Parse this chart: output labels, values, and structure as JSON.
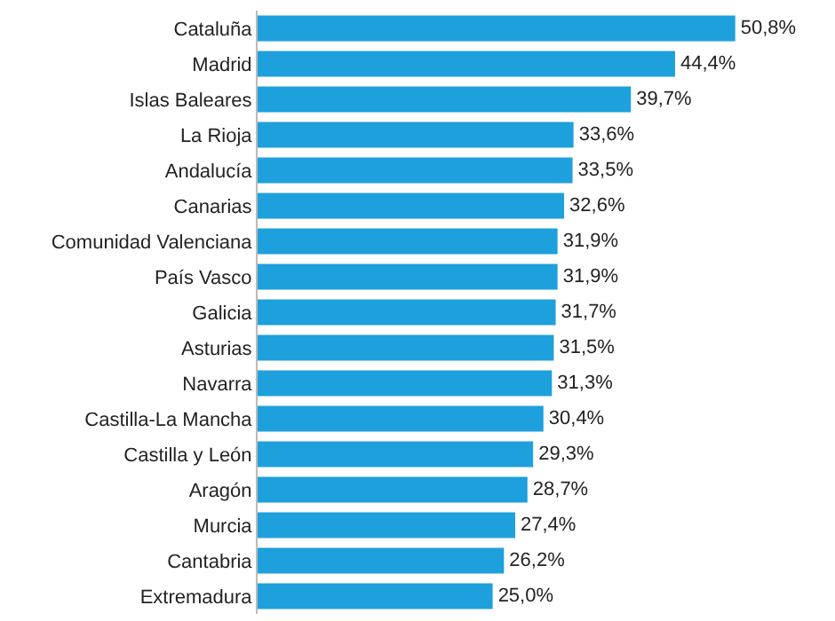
{
  "chart_data": {
    "type": "bar",
    "orientation": "horizontal",
    "categories": [
      "Cataluña",
      "Madrid",
      "Islas Baleares",
      "La Rioja",
      "Andalucía",
      "Canarias",
      "Comunidad Valenciana",
      "País Vasco",
      "Galicia",
      "Asturias",
      "Navarra",
      "Castilla-La Mancha",
      "Castilla y León",
      "Aragón",
      "Murcia",
      "Cantabria",
      "Extremadura"
    ],
    "values": [
      50.8,
      44.4,
      39.7,
      33.6,
      33.5,
      32.6,
      31.9,
      31.9,
      31.7,
      31.5,
      31.3,
      30.4,
      29.3,
      28.7,
      27.4,
      26.2,
      25.0
    ],
    "value_labels": [
      "50,8%",
      "44,4%",
      "39,7%",
      "33,6%",
      "33,5%",
      "32,6%",
      "31,9%",
      "31,9%",
      "31,7%",
      "31,5%",
      "31,3%",
      "30,4%",
      "29,3%",
      "28,7%",
      "27,4%",
      "26,2%",
      "25,0%"
    ],
    "color": "#1ea0dc",
    "tick_labels": "y"
  }
}
